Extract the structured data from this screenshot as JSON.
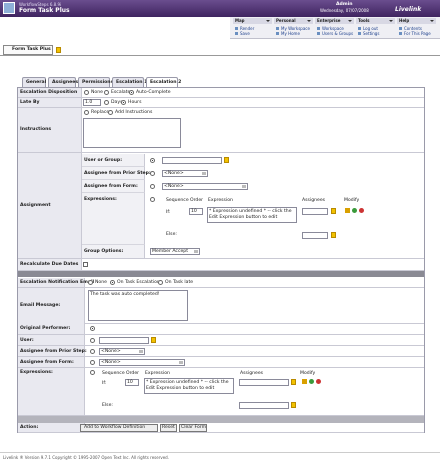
{
  "header": {
    "product": "WorkflowSteps 6.8.9i",
    "title": "Form Task Plus",
    "user": "Admin",
    "date": "Wednesday, 07/07/2008",
    "logo": "Livelink"
  },
  "menu": [
    {
      "label": "Map",
      "links": [
        "Render",
        "Save"
      ]
    },
    {
      "label": "Personal",
      "links": [
        "My Workspace",
        "My Home"
      ]
    },
    {
      "label": "Enterprise",
      "links": [
        "Workspace",
        "Users & Groups"
      ]
    },
    {
      "label": "Tools",
      "links": [
        "Log out",
        "Settings"
      ]
    },
    {
      "label": "Help",
      "links": [
        "Contents",
        "For This Page"
      ]
    }
  ],
  "page_tab": "Form Task Plus",
  "tabs": [
    "General",
    "Assignees",
    "Permissions",
    "Escalation 1",
    "Escalation 2"
  ],
  "form": {
    "disposition": {
      "label": "Escalation Disposition",
      "options": [
        "None",
        "Escalate",
        "Auto-Complete"
      ]
    },
    "late_by": {
      "label": "Late By",
      "value": "1.0",
      "options": [
        "Days",
        "Hours"
      ]
    },
    "instructions": {
      "label": "Instructions",
      "options": [
        "Replace",
        "Add Instructions"
      ]
    },
    "assignment": {
      "label": "Assignment",
      "user_or_group": "User or Group:",
      "prior_step": "Assignee from Prior Step:",
      "from_form": "Assignee from Form:",
      "none": "<None>",
      "expressions": "Expressions:",
      "columns": [
        "Sequence",
        "Order",
        "Expression",
        "Assignees",
        "Modify"
      ],
      "if": "If:",
      "order": "10",
      "expression": "* Expression undefined * -- click the Edit Expression button to edit",
      "else": "Else:",
      "group_options": "Group Options:",
      "group_value": "Member Accept"
    },
    "recalculate": "Recalculate Due Dates",
    "notification": {
      "label": "Escalation Notification Email",
      "options": [
        "None",
        "On Task Escalation",
        "On Task late"
      ]
    },
    "email": {
      "label": "Email Message:",
      "value": "The task was auto completed!"
    },
    "original_performer": "Original Performer:",
    "user": "User:",
    "prior_step": "Assignee from Prior Step:",
    "from_form": "Assignee from Form:",
    "none": "<None>",
    "expressions": {
      "label": "Expressions:",
      "columns": [
        "Sequence",
        "Order",
        "Expression",
        "Assignees",
        "Modify"
      ],
      "if": "If:",
      "order": "10",
      "expression": "* Expression undefined * -- click the Edit Expression button to edit",
      "else": "Else:"
    },
    "action": {
      "label": "Action:",
      "buttons": [
        "Add to Workflow Definition",
        "Reset",
        "Clear Form"
      ]
    }
  },
  "footer": "Livelink ® Version 9.7.1 Copyright © 1995-2007 Open Text Inc. All rights reserved."
}
